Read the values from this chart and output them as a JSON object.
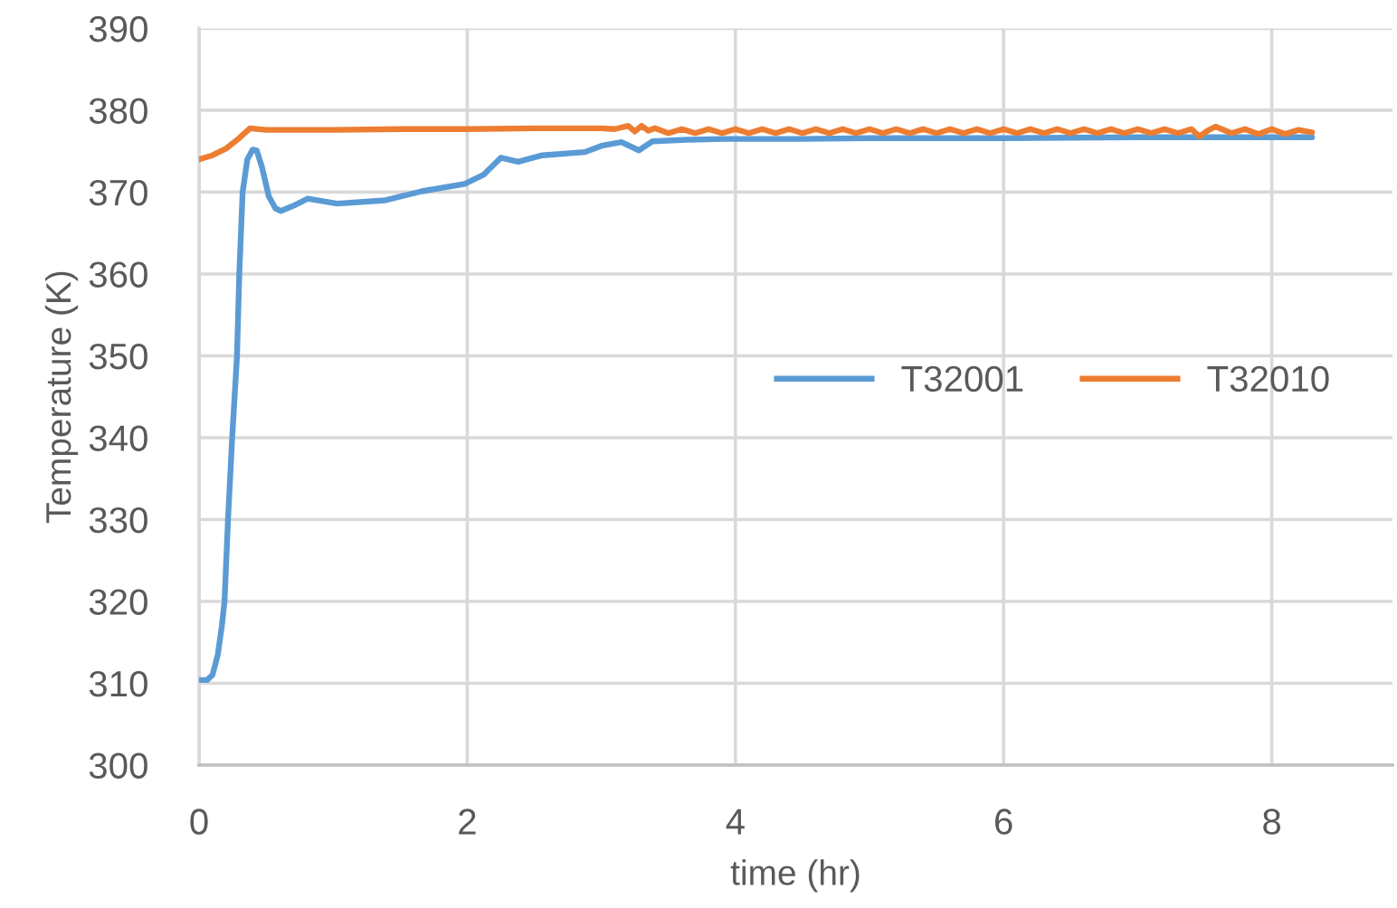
{
  "chart_data": {
    "type": "line",
    "xlabel": "time (hr)",
    "ylabel": "Temperature (K)",
    "xlim": [
      0,
      8.9
    ],
    "ylim": [
      300,
      390
    ],
    "xticks": [
      0,
      2,
      4,
      6,
      8
    ],
    "yticks": [
      300,
      310,
      320,
      330,
      340,
      350,
      360,
      370,
      380,
      390
    ],
    "grid": true,
    "legend": "right",
    "series": [
      {
        "name": "T32001",
        "color": "#5b9bd5",
        "x": [
          0,
          0.06,
          0.1,
          0.14,
          0.17,
          0.19,
          0.216,
          0.247,
          0.283,
          0.3,
          0.325,
          0.36,
          0.4,
          0.43,
          0.47,
          0.52,
          0.57,
          0.61,
          0.7,
          0.81,
          1.03,
          1.39,
          1.66,
          1.98,
          2.12,
          2.25,
          2.38,
          2.56,
          2.88,
          3.01,
          3.15,
          3.28,
          3.38,
          3.64,
          3.91,
          4.5,
          5.0,
          6.0,
          7.0,
          8.0,
          8.3
        ],
        "values": [
          310.4,
          310.4,
          311.0,
          313.5,
          317.0,
          320.0,
          330.0,
          340.0,
          350.0,
          360.0,
          370.0,
          374.0,
          375.2,
          375.1,
          373.0,
          369.5,
          368.0,
          367.7,
          368.3,
          369.2,
          368.6,
          369.0,
          370.1,
          371.0,
          372.1,
          374.2,
          373.7,
          374.5,
          374.9,
          375.7,
          376.1,
          375.1,
          376.2,
          376.4,
          376.5,
          376.5,
          376.6,
          376.6,
          376.7,
          376.7,
          376.7
        ]
      },
      {
        "name": "T32010",
        "color": "#ed7d31",
        "x": [
          0,
          0.1,
          0.2,
          0.3,
          0.38,
          0.5,
          1.0,
          1.5,
          2.0,
          2.5,
          3.0,
          3.1,
          3.2,
          3.25,
          3.3,
          3.35,
          3.4,
          3.5,
          3.6,
          3.7,
          3.8,
          3.9,
          4.0,
          4.1,
          4.2,
          4.3,
          4.4,
          4.5,
          4.6,
          4.7,
          4.8,
          4.9,
          5.0,
          5.1,
          5.2,
          5.3,
          5.4,
          5.5,
          5.6,
          5.7,
          5.8,
          5.9,
          6.0,
          6.1,
          6.2,
          6.3,
          6.4,
          6.5,
          6.6,
          6.7,
          6.8,
          6.9,
          7.0,
          7.1,
          7.2,
          7.3,
          7.4,
          7.46,
          7.52,
          7.58,
          7.7,
          7.8,
          7.9,
          8.0,
          8.1,
          8.2,
          8.3
        ],
        "values": [
          374.0,
          374.5,
          375.3,
          376.6,
          377.8,
          377.6,
          377.6,
          377.7,
          377.7,
          377.8,
          377.8,
          377.7,
          378.1,
          377.4,
          378.1,
          377.5,
          377.8,
          377.2,
          377.7,
          377.2,
          377.7,
          377.2,
          377.7,
          377.2,
          377.7,
          377.2,
          377.7,
          377.2,
          377.7,
          377.2,
          377.7,
          377.2,
          377.7,
          377.2,
          377.7,
          377.2,
          377.7,
          377.2,
          377.7,
          377.2,
          377.7,
          377.2,
          377.7,
          377.2,
          377.7,
          377.2,
          377.7,
          377.2,
          377.7,
          377.2,
          377.7,
          377.2,
          377.7,
          377.2,
          377.7,
          377.2,
          377.7,
          376.8,
          377.5,
          378.0,
          377.2,
          377.7,
          377.1,
          377.7,
          377.1,
          377.6,
          377.3
        ]
      }
    ]
  }
}
